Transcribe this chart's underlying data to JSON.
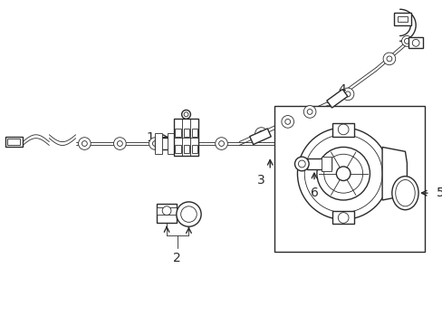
{
  "bg_color": "#ffffff",
  "line_color": "#2a2a2a",
  "line_width": 1.0,
  "thin_line": 0.6,
  "label_fontsize": 9,
  "fig_width": 4.89,
  "fig_height": 3.6,
  "dpi": 100
}
